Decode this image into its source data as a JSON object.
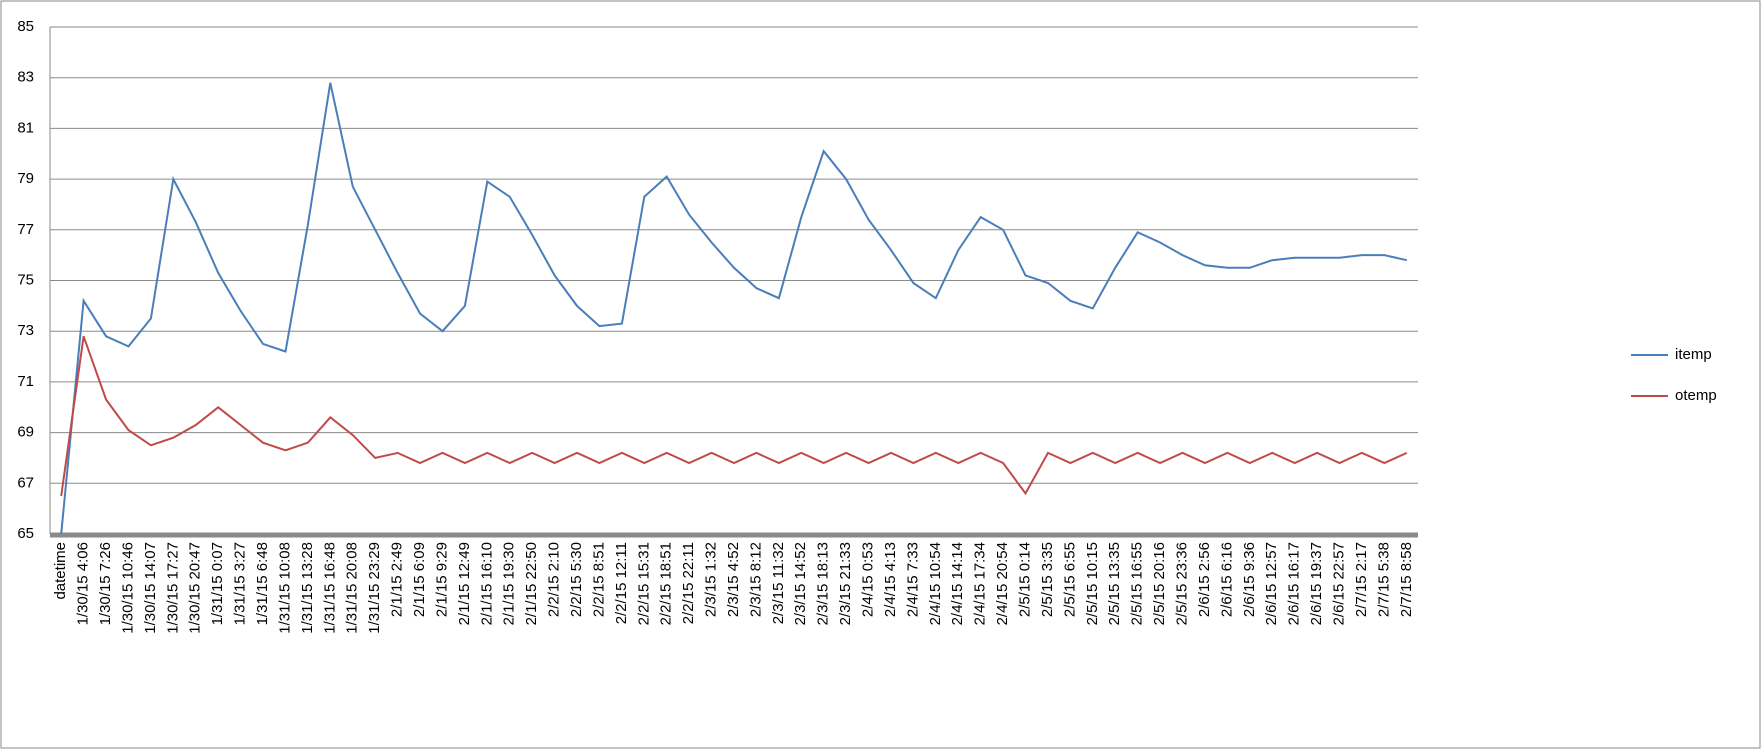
{
  "chart_data": {
    "type": "line",
    "categories": [
      "datetime",
      "1/30/15 4:06",
      "1/30/15 7:26",
      "1/30/15 10:46",
      "1/30/15 14:07",
      "1/30/15 17:27",
      "1/30/15 20:47",
      "1/31/15 0:07",
      "1/31/15 3:27",
      "1/31/15 6:48",
      "1/31/15 10:08",
      "1/31/15 13:28",
      "1/31/15 16:48",
      "1/31/15 20:08",
      "1/31/15 23:29",
      "2/1/15 2:49",
      "2/1/15 6:09",
      "2/1/15 9:29",
      "2/1/15 12:49",
      "2/1/15 16:10",
      "2/1/15 19:30",
      "2/1/15 22:50",
      "2/2/15 2:10",
      "2/2/15 5:30",
      "2/2/15 8:51",
      "2/2/15 12:11",
      "2/2/15 15:31",
      "2/2/15 18:51",
      "2/2/15 22:11",
      "2/3/15 1:32",
      "2/3/15 4:52",
      "2/3/15 8:12",
      "2/3/15 11:32",
      "2/3/15 14:52",
      "2/3/15 18:13",
      "2/3/15 21:33",
      "2/4/15 0:53",
      "2/4/15 4:13",
      "2/4/15 7:33",
      "2/4/15 10:54",
      "2/4/15 14:14",
      "2/4/15 17:34",
      "2/4/15 20:54",
      "2/5/15 0:14",
      "2/5/15 3:35",
      "2/5/15 6:55",
      "2/5/15 10:15",
      "2/5/15 13:35",
      "2/5/15 16:55",
      "2/5/15 20:16",
      "2/5/15 23:36",
      "2/6/15 2:56",
      "2/6/15 6:16",
      "2/6/15 9:36",
      "2/6/15 12:57",
      "2/6/15 16:17",
      "2/6/15 19:37",
      "2/6/15 22:57",
      "2/7/15 2:17",
      "2/7/15 5:38",
      "2/7/15 8:58"
    ],
    "series": [
      {
        "name": "itemp",
        "color": "#4a7ebb",
        "values": [
          65,
          74.2,
          72.8,
          72.4,
          73.5,
          79.0,
          77.3,
          75.3,
          73.8,
          72.5,
          72.2,
          77.2,
          82.8,
          78.7,
          77.0,
          75.3,
          73.7,
          73.0,
          74.0,
          78.9,
          78.3,
          76.8,
          75.2,
          74.0,
          73.2,
          73.3,
          78.3,
          79.1,
          77.6,
          76.5,
          75.5,
          74.7,
          74.3,
          77.5,
          80.1,
          79.0,
          77.4,
          76.2,
          74.9,
          74.3,
          76.2,
          77.5,
          77.0,
          75.2,
          74.9,
          74.2,
          73.9,
          75.5,
          76.9,
          76.5,
          76.0,
          75.6,
          75.5,
          75.5,
          75.8,
          75.9,
          75.9,
          75.9,
          76.0,
          76.0,
          75.8
        ]
      },
      {
        "name": "otemp",
        "color": "#be4b48",
        "values": [
          66.5,
          72.8,
          70.3,
          69.1,
          68.5,
          68.8,
          69.3,
          70.0,
          69.3,
          68.6,
          68.3,
          68.6,
          69.6,
          68.9,
          68.0,
          68.2,
          67.8,
          68.2,
          67.8,
          68.2,
          67.8,
          68.2,
          67.8,
          68.2,
          67.8,
          68.2,
          67.8,
          68.2,
          67.8,
          68.2,
          67.8,
          68.2,
          67.8,
          68.2,
          67.8,
          68.2,
          67.8,
          68.2,
          67.8,
          68.2,
          67.8,
          68.2,
          67.8,
          66.6,
          68.2,
          67.8,
          68.2,
          67.8,
          68.2,
          67.8,
          68.2,
          67.8,
          68.2,
          67.8,
          68.2,
          67.8,
          68.2,
          67.8,
          68.2,
          67.8,
          68.2
        ]
      }
    ],
    "ylim": [
      65,
      85
    ],
    "yticks": [
      65,
      67,
      69,
      71,
      73,
      75,
      77,
      79,
      81,
      83,
      85
    ],
    "grid": true,
    "legend": "right"
  }
}
